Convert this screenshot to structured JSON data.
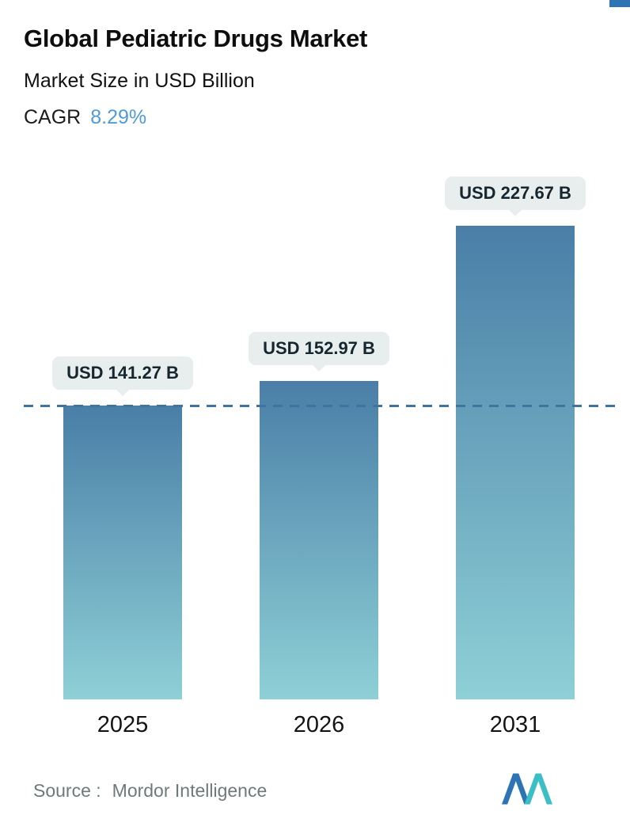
{
  "corner_mark_color": "#2e74b5",
  "header": {
    "title": "Global Pediatric Drugs Market",
    "subtitle": "Market Size in USD Billion",
    "cagr_label": "CAGR",
    "cagr_value": "8.29%",
    "cagr_value_color": "#4f9bd6"
  },
  "chart_data": {
    "type": "bar",
    "title": "Global Pediatric Drugs Market",
    "subtitle": "Market Size in USD Billion",
    "cagr": "8.29%",
    "unit": "USD Billion",
    "categories": [
      "2025",
      "2026",
      "2031"
    ],
    "values": [
      141.27,
      152.97,
      227.67
    ],
    "value_labels": [
      "USD 141.27 B",
      "USD 152.97 B",
      "USD 227.67 B"
    ],
    "ylim": [
      0,
      227.67
    ],
    "grid": "off",
    "legend": "none",
    "reference_line_value": 141.27,
    "reference_line_style": "dashed",
    "reference_line_color": "#3f74a1",
    "bar_gradient_top": "#4a7ea7",
    "bar_gradient_bottom": "#8ed0d6",
    "callout_bg": "#e8eeee"
  },
  "footer": {
    "source_label": "Source :",
    "source_name": "Mordor Intelligence",
    "logo": "mordor-intelligence-logo",
    "logo_color_dark": "#2e74b5",
    "logo_color_teal": "#3bbfc4"
  }
}
